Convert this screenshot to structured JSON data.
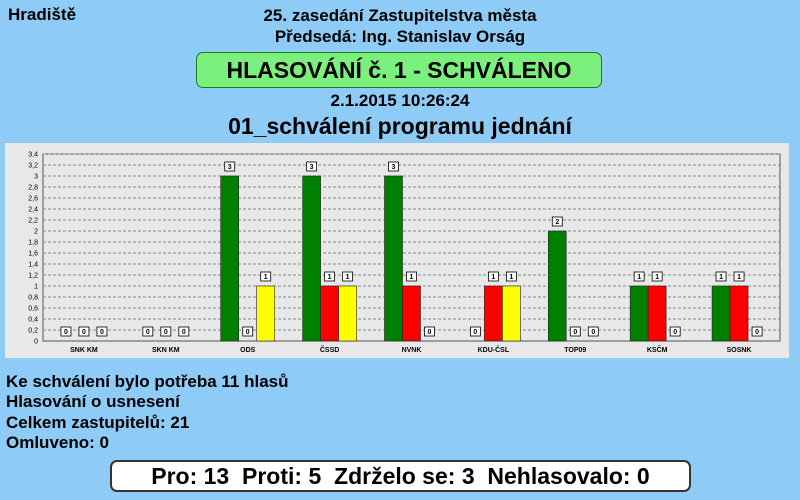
{
  "header": {
    "town": "Hradiště",
    "session": "25. zasedání Zastupitelstva města",
    "chair": "Předsedá: Ing. Stanislav Orság",
    "result": "HLASOVÁNÍ č. 1 - SCHVÁLENO",
    "datetime": "2.1.2015 10:26:24",
    "motion": "01_schválení programu jednání"
  },
  "colors": {
    "for": "#008000",
    "against": "#ff0000",
    "abstain": "#ffff00",
    "result_box": "#7cf07c",
    "background": "#8ecbf7"
  },
  "chart_data": {
    "type": "bar",
    "categories": [
      "SNK KM",
      "SKN KM",
      "ODS",
      "ČSSD",
      "NVNK",
      "KDU-ČSL",
      "TOP09",
      "KSČM",
      "SOSNK"
    ],
    "series": [
      {
        "values": [
          0,
          0,
          3,
          3,
          3,
          0,
          2,
          1,
          1
        ]
      },
      {
        "values": [
          0,
          0,
          0,
          1,
          1,
          1,
          0,
          1,
          1
        ]
      },
      {
        "values": [
          0,
          0,
          1,
          1,
          0,
          1,
          0,
          0,
          0
        ]
      }
    ],
    "ylim": [
      0,
      3.4
    ],
    "yticks": [
      "0",
      "0,2",
      "0,4",
      "0,6",
      "0,8",
      "1",
      "1,2",
      "1,4",
      "1,6",
      "1,8",
      "2",
      "2,2",
      "2,4",
      "2,6",
      "2,8",
      "3",
      "3,2",
      "3,4"
    ],
    "grid": true
  },
  "info": {
    "needed": "Ke schválení bylo potřeba 11 hlasů",
    "kind": "Hlasování o usnesení",
    "members": "Celkem zastupitelů: 21",
    "excused": "Omluveno: 0"
  },
  "totals": {
    "text": "Pro: 13  Proti: 5  Zdrželo se: 3  Nehlasovalo: 0"
  }
}
